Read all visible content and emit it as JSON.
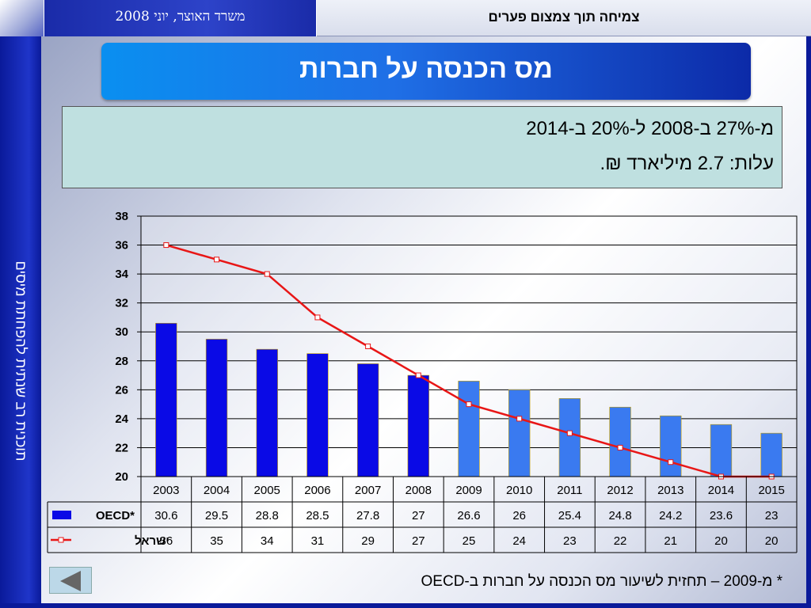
{
  "header": {
    "date": "משרד האוצר, יוני 2008",
    "subtitle": "צמיחה תוך צמצום פערים"
  },
  "sidebar": {
    "vertical_text": "תוכנית רב שנתית להפחתת מיסים"
  },
  "title": "מס הכנסה על חברות",
  "info": {
    "line1": "מ-27% ב-2008 ל-20% ב-2014",
    "line2": "עלות: 2.7 מיליארד ₪."
  },
  "footnote": "* מ-2009 – תחזית לשיעור מס הכנסה על חברות ב-OECD",
  "nav": {
    "back_icon": "back-arrow-icon"
  },
  "colors": {
    "bar_actual": "#0a0ae6",
    "bar_forecast": "#3a7af0",
    "line": "#e81616",
    "grid": "#000000"
  },
  "chart_data": {
    "type": "bar",
    "categories": [
      "2003",
      "2004",
      "2005",
      "2006",
      "2007",
      "2008",
      "2009",
      "2010",
      "2011",
      "2012",
      "2013",
      "2014",
      "2015"
    ],
    "series": [
      {
        "name": "OECD*",
        "type": "bar",
        "values": [
          30.6,
          29.5,
          28.8,
          28.5,
          27.8,
          27,
          26.6,
          26,
          25.4,
          24.8,
          24.2,
          23.6,
          23
        ]
      },
      {
        "name": "ישראל",
        "type": "line",
        "values": [
          36,
          35,
          34,
          31,
          29,
          27,
          25,
          24,
          23,
          22,
          21,
          20,
          20
        ]
      }
    ],
    "ylim": [
      20,
      38
    ],
    "yticks": [
      20,
      22,
      24,
      26,
      28,
      30,
      32,
      34,
      36,
      38
    ],
    "grid": true,
    "legend": "data-table"
  }
}
